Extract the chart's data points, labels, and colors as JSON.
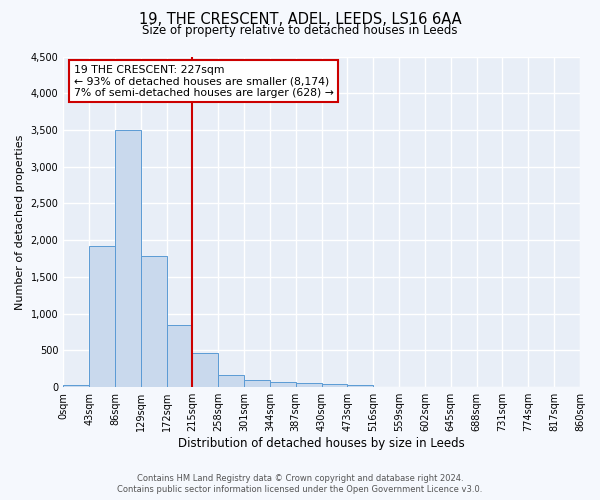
{
  "title": "19, THE CRESCENT, ADEL, LEEDS, LS16 6AA",
  "subtitle": "Size of property relative to detached houses in Leeds",
  "xlabel": "Distribution of detached houses by size in Leeds",
  "ylabel": "Number of detached properties",
  "bar_color": "#c9d9ed",
  "bar_edge_color": "#5b9bd5",
  "background_color": "#e8eef7",
  "fig_background": "#f5f8fd",
  "grid_color": "#ffffff",
  "bin_edges": [
    0,
    43,
    86,
    129,
    172,
    215,
    258,
    301,
    344,
    387,
    430,
    473,
    516,
    559,
    602,
    645,
    688,
    731,
    774,
    817,
    860
  ],
  "bin_labels": [
    "0sqm",
    "43sqm",
    "86sqm",
    "129sqm",
    "172sqm",
    "215sqm",
    "258sqm",
    "301sqm",
    "344sqm",
    "387sqm",
    "430sqm",
    "473sqm",
    "516sqm",
    "559sqm",
    "602sqm",
    "645sqm",
    "688sqm",
    "731sqm",
    "774sqm",
    "817sqm",
    "860sqm"
  ],
  "bar_heights": [
    30,
    1920,
    3500,
    1790,
    850,
    460,
    160,
    100,
    70,
    55,
    40,
    30,
    0,
    0,
    0,
    0,
    0,
    0,
    0,
    0
  ],
  "ylim": [
    0,
    4500
  ],
  "yticks": [
    0,
    500,
    1000,
    1500,
    2000,
    2500,
    3000,
    3500,
    4000,
    4500
  ],
  "vline_x": 215,
  "annotation_line1": "19 THE CRESCENT: 227sqm",
  "annotation_line2": "← 93% of detached houses are smaller (8,174)",
  "annotation_line3": "7% of semi-detached houses are larger (628) →",
  "annotation_box_color": "#ffffff",
  "annotation_box_edge": "#cc0000",
  "vline_color": "#cc0000",
  "footer_line1": "Contains HM Land Registry data © Crown copyright and database right 2024.",
  "footer_line2": "Contains public sector information licensed under the Open Government Licence v3.0."
}
